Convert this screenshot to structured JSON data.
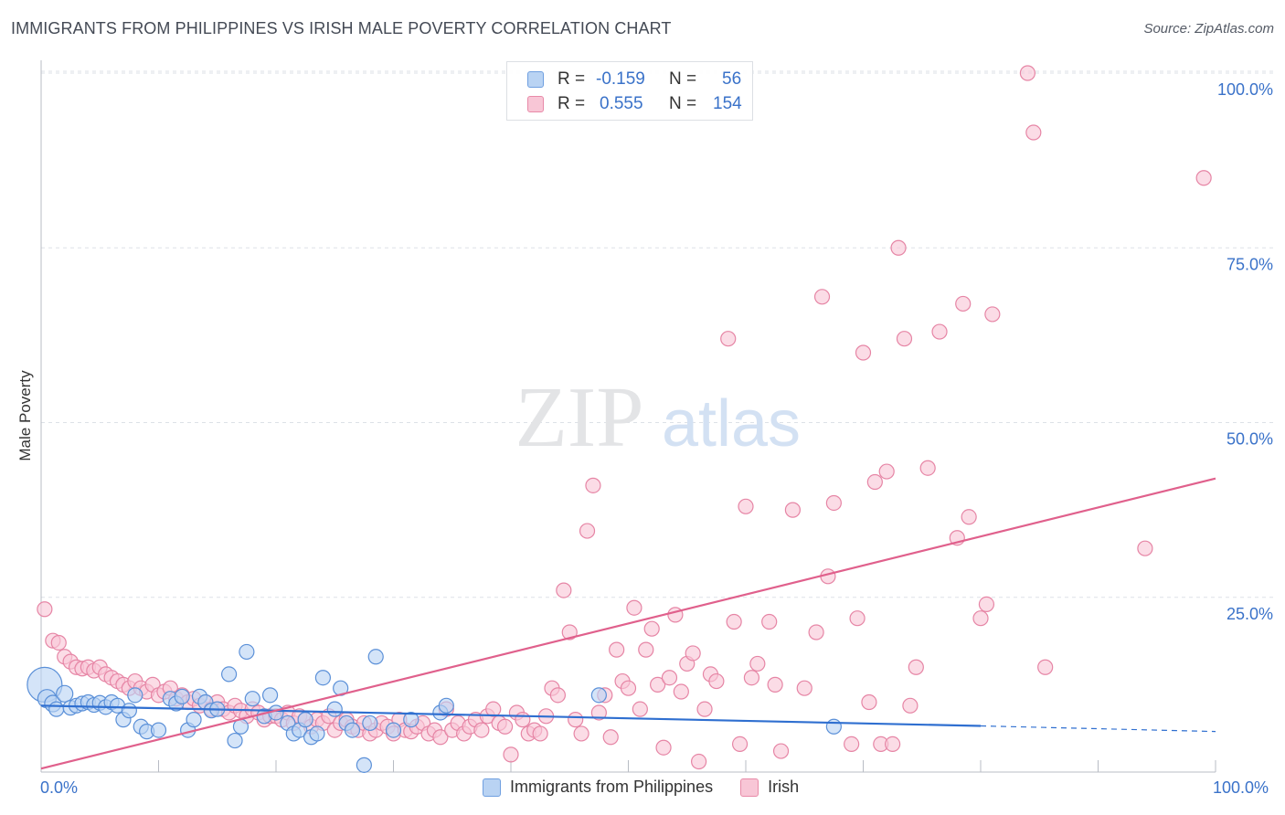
{
  "title": "IMMIGRANTS FROM PHILIPPINES VS IRISH MALE POVERTY CORRELATION CHART",
  "source": "Source: ZipAtlas.com",
  "watermark": {
    "zip": "ZIP",
    "atlas": "atlas"
  },
  "legend": {
    "r_label": "R =",
    "n_label": "N =",
    "rows": [
      {
        "name": "Immigrants from Philippines",
        "r": "-0.159",
        "n": "56",
        "fill": "#b9d3f3",
        "stroke": "#6f9fe0"
      },
      {
        "name": "Irish",
        "r": "0.555",
        "n": "154",
        "fill": "#f8c6d6",
        "stroke": "#e88aa8"
      }
    ]
  },
  "colors": {
    "blue_fill": "#b9d3f3",
    "blue_stroke": "#5b90d8",
    "blue_line": "#2f6fd0",
    "pink_fill": "#f8c6d6",
    "pink_stroke": "#e685a5",
    "pink_line": "#e0608c",
    "axis_text": "#3a72c9",
    "grid": "#dde1e7"
  },
  "chart_data": {
    "type": "scatter",
    "title": "IMMIGRANTS FROM PHILIPPINES VS IRISH MALE POVERTY CORRELATION CHART",
    "xlabel": "",
    "ylabel": "Male Poverty",
    "xlim": [
      0,
      100
    ],
    "ylim": [
      0,
      100
    ],
    "x_tick_labels": [
      "0.0%",
      "100.0%"
    ],
    "y_tick_labels": [
      "25.0%",
      "50.0%",
      "75.0%",
      "100.0%"
    ],
    "y_ticks": [
      25,
      50,
      75,
      100
    ],
    "series": [
      {
        "name": "Immigrants from Philippines",
        "trend": {
          "x0": 0,
          "y0": 9.5,
          "x1": 80,
          "y1": 6.6,
          "dashed_to": 100,
          "dashed_y": 5.8
        },
        "points": [
          [
            0.3,
            12.5,
            34
          ],
          [
            0.5,
            10.5,
            16
          ],
          [
            1.0,
            9.8,
            14
          ],
          [
            1.3,
            9.0,
            12
          ],
          [
            2.0,
            11.2,
            14
          ],
          [
            2.5,
            9.2,
            12
          ],
          [
            3.0,
            9.5,
            12
          ],
          [
            3.5,
            9.8,
            12
          ],
          [
            4.0,
            10.0,
            12
          ],
          [
            4.5,
            9.6,
            12
          ],
          [
            5.0,
            9.9,
            12
          ],
          [
            5.5,
            9.3,
            12
          ],
          [
            6.0,
            10.0,
            12
          ],
          [
            6.5,
            9.5,
            12
          ],
          [
            7.0,
            7.5,
            12
          ],
          [
            7.5,
            8.8,
            12
          ],
          [
            8.0,
            11.0,
            12
          ],
          [
            8.5,
            6.5,
            12
          ],
          [
            9.0,
            5.8,
            12
          ],
          [
            10.0,
            6.0,
            12
          ],
          [
            11.0,
            10.5,
            12
          ],
          [
            11.5,
            9.8,
            12
          ],
          [
            12.0,
            10.8,
            12
          ],
          [
            12.5,
            6.0,
            12
          ],
          [
            13.0,
            7.5,
            12
          ],
          [
            13.5,
            10.8,
            12
          ],
          [
            14.0,
            10.0,
            12
          ],
          [
            14.5,
            8.8,
            12
          ],
          [
            15.0,
            9.0,
            12
          ],
          [
            16.0,
            14.0,
            12
          ],
          [
            16.5,
            4.5,
            12
          ],
          [
            17.0,
            6.5,
            12
          ],
          [
            17.5,
            17.2,
            12
          ],
          [
            18.0,
            10.5,
            12
          ],
          [
            19.0,
            8.0,
            12
          ],
          [
            19.5,
            11.0,
            12
          ],
          [
            20.0,
            8.5,
            12
          ],
          [
            21.0,
            7.0,
            12
          ],
          [
            21.5,
            5.5,
            12
          ],
          [
            22.0,
            6.0,
            12
          ],
          [
            22.5,
            7.5,
            12
          ],
          [
            23.0,
            5.0,
            12
          ],
          [
            23.5,
            5.5,
            12
          ],
          [
            24.0,
            13.5,
            12
          ],
          [
            25.0,
            9.0,
            12
          ],
          [
            25.5,
            12.0,
            12
          ],
          [
            26.0,
            7.0,
            12
          ],
          [
            26.5,
            6.0,
            12
          ],
          [
            27.5,
            1.0,
            12
          ],
          [
            28.0,
            7.0,
            12
          ],
          [
            28.5,
            16.5,
            12
          ],
          [
            30.0,
            6.0,
            12
          ],
          [
            31.5,
            7.5,
            12
          ],
          [
            34.0,
            8.5,
            12
          ],
          [
            34.5,
            9.5,
            12
          ],
          [
            47.5,
            11.0,
            12
          ],
          [
            67.5,
            6.5,
            12
          ]
        ]
      },
      {
        "name": "Irish",
        "trend": {
          "x0": 0,
          "y0": 0.5,
          "x1": 100,
          "y1": 42.0
        },
        "points": [
          [
            0.3,
            23.3,
            12
          ],
          [
            1.0,
            18.8,
            12
          ],
          [
            1.5,
            18.5,
            12
          ],
          [
            2.0,
            16.5,
            12
          ],
          [
            2.5,
            15.8,
            12
          ],
          [
            3.0,
            15.0,
            12
          ],
          [
            3.5,
            14.8,
            12
          ],
          [
            4.0,
            15.0,
            12
          ],
          [
            4.5,
            14.5,
            12
          ],
          [
            5.0,
            15.0,
            12
          ],
          [
            5.5,
            14.0,
            12
          ],
          [
            6.0,
            13.5,
            12
          ],
          [
            6.5,
            13.0,
            12
          ],
          [
            7.0,
            12.5,
            12
          ],
          [
            7.5,
            12.0,
            12
          ],
          [
            8.0,
            13.0,
            12
          ],
          [
            8.5,
            12.0,
            12
          ],
          [
            9.0,
            11.5,
            12
          ],
          [
            9.5,
            12.5,
            12
          ],
          [
            10.0,
            11.0,
            12
          ],
          [
            10.5,
            11.5,
            12
          ],
          [
            11.0,
            12.0,
            12
          ],
          [
            11.5,
            10.5,
            12
          ],
          [
            12.0,
            11.0,
            12
          ],
          [
            12.5,
            10.0,
            12
          ],
          [
            13.0,
            10.5,
            12
          ],
          [
            13.5,
            9.5,
            12
          ],
          [
            14.0,
            10.0,
            12
          ],
          [
            14.5,
            9.0,
            12
          ],
          [
            15.0,
            10.0,
            12
          ],
          [
            15.5,
            9.0,
            12
          ],
          [
            16.0,
            8.5,
            12
          ],
          [
            16.5,
            9.5,
            12
          ],
          [
            17.0,
            8.8,
            12
          ],
          [
            17.5,
            8.0,
            12
          ],
          [
            18.0,
            9.0,
            12
          ],
          [
            18.5,
            8.5,
            12
          ],
          [
            19.0,
            7.5,
            12
          ],
          [
            19.5,
            8.0,
            12
          ],
          [
            20.0,
            8.0,
            12
          ],
          [
            20.5,
            7.5,
            12
          ],
          [
            21.0,
            8.5,
            12
          ],
          [
            21.5,
            7.0,
            12
          ],
          [
            22.0,
            8.0,
            12
          ],
          [
            22.5,
            7.5,
            12
          ],
          [
            23.0,
            6.5,
            12
          ],
          [
            23.5,
            7.5,
            12
          ],
          [
            24.0,
            7.0,
            12
          ],
          [
            24.5,
            8.0,
            12
          ],
          [
            25.0,
            6.0,
            12
          ],
          [
            25.5,
            7.0,
            12
          ],
          [
            26.0,
            7.5,
            12
          ],
          [
            26.5,
            6.5,
            12
          ],
          [
            27.0,
            6.0,
            12
          ],
          [
            27.5,
            7.0,
            12
          ],
          [
            28.0,
            5.5,
            12
          ],
          [
            28.5,
            6.0,
            12
          ],
          [
            29.0,
            7.0,
            12
          ],
          [
            29.5,
            6.5,
            12
          ],
          [
            30.0,
            5.5,
            12
          ],
          [
            30.5,
            7.5,
            12
          ],
          [
            31.0,
            6.0,
            12
          ],
          [
            31.5,
            5.8,
            12
          ],
          [
            32.0,
            6.5,
            12
          ],
          [
            32.5,
            7.0,
            12
          ],
          [
            33.0,
            5.5,
            12
          ],
          [
            33.5,
            6.0,
            12
          ],
          [
            34.0,
            5.0,
            12
          ],
          [
            34.5,
            9.0,
            12
          ],
          [
            35.0,
            6.0,
            12
          ],
          [
            35.5,
            7.0,
            12
          ],
          [
            36.0,
            5.5,
            12
          ],
          [
            36.5,
            6.5,
            12
          ],
          [
            37.0,
            7.5,
            12
          ],
          [
            37.5,
            6.0,
            12
          ],
          [
            38.0,
            8.0,
            12
          ],
          [
            38.5,
            9.0,
            12
          ],
          [
            39.0,
            7.0,
            12
          ],
          [
            39.5,
            6.5,
            12
          ],
          [
            40.0,
            2.5,
            12
          ],
          [
            40.5,
            8.5,
            12
          ],
          [
            41.0,
            7.5,
            12
          ],
          [
            41.5,
            5.5,
            12
          ],
          [
            42.0,
            6.0,
            12
          ],
          [
            42.5,
            5.5,
            12
          ],
          [
            43.0,
            8.0,
            12
          ],
          [
            43.5,
            12.0,
            12
          ],
          [
            44.0,
            11.0,
            12
          ],
          [
            44.5,
            26.0,
            12
          ],
          [
            45.0,
            20.0,
            12
          ],
          [
            45.5,
            7.5,
            12
          ],
          [
            46.0,
            5.5,
            12
          ],
          [
            46.5,
            34.5,
            12
          ],
          [
            47.0,
            41.0,
            12
          ],
          [
            47.5,
            8.5,
            12
          ],
          [
            48.0,
            11.0,
            12
          ],
          [
            48.5,
            5.0,
            12
          ],
          [
            49.0,
            17.5,
            12
          ],
          [
            49.5,
            13.0,
            12
          ],
          [
            50.0,
            12.0,
            12
          ],
          [
            50.5,
            23.5,
            12
          ],
          [
            51.0,
            9.0,
            12
          ],
          [
            51.5,
            17.5,
            12
          ],
          [
            52.0,
            20.5,
            12
          ],
          [
            52.5,
            12.5,
            12
          ],
          [
            53.0,
            3.5,
            12
          ],
          [
            53.5,
            13.5,
            12
          ],
          [
            54.0,
            22.5,
            12
          ],
          [
            54.5,
            11.5,
            12
          ],
          [
            55.0,
            15.5,
            12
          ],
          [
            55.5,
            17.0,
            12
          ],
          [
            56.0,
            1.5,
            12
          ],
          [
            56.5,
            9.0,
            12
          ],
          [
            57.0,
            14.0,
            12
          ],
          [
            57.5,
            13.0,
            12
          ],
          [
            58.5,
            62.0,
            12
          ],
          [
            59.0,
            21.5,
            12
          ],
          [
            59.5,
            4.0,
            12
          ],
          [
            60.0,
            38.0,
            12
          ],
          [
            60.5,
            13.5,
            12
          ],
          [
            61.0,
            15.5,
            12
          ],
          [
            62.0,
            21.5,
            12
          ],
          [
            62.5,
            12.5,
            12
          ],
          [
            63.0,
            3.0,
            12
          ],
          [
            64.0,
            37.5,
            12
          ],
          [
            65.0,
            12.0,
            12
          ],
          [
            66.0,
            20.0,
            12
          ],
          [
            66.5,
            68.0,
            12
          ],
          [
            67.0,
            28.0,
            12
          ],
          [
            67.5,
            38.5,
            12
          ],
          [
            69.0,
            4.0,
            12
          ],
          [
            69.5,
            22.0,
            12
          ],
          [
            70.0,
            60.0,
            12
          ],
          [
            70.5,
            10.0,
            12
          ],
          [
            71.0,
            41.5,
            12
          ],
          [
            71.5,
            4.0,
            12
          ],
          [
            72.0,
            43.0,
            12
          ],
          [
            72.5,
            4.0,
            12
          ],
          [
            73.0,
            75.0,
            12
          ],
          [
            73.5,
            62.0,
            12
          ],
          [
            74.0,
            9.5,
            12
          ],
          [
            74.5,
            15.0,
            12
          ],
          [
            75.5,
            43.5,
            12
          ],
          [
            76.5,
            63.0,
            12
          ],
          [
            78.0,
            33.5,
            12
          ],
          [
            78.5,
            67.0,
            12
          ],
          [
            79.0,
            36.5,
            12
          ],
          [
            80.0,
            22.0,
            12
          ],
          [
            80.5,
            24.0,
            12
          ],
          [
            81.0,
            65.5,
            12
          ],
          [
            84.0,
            100.0,
            12
          ],
          [
            84.5,
            91.5,
            12
          ],
          [
            85.5,
            15.0,
            12
          ],
          [
            94.0,
            32.0,
            12
          ],
          [
            99.0,
            85.0,
            12
          ]
        ]
      }
    ]
  }
}
